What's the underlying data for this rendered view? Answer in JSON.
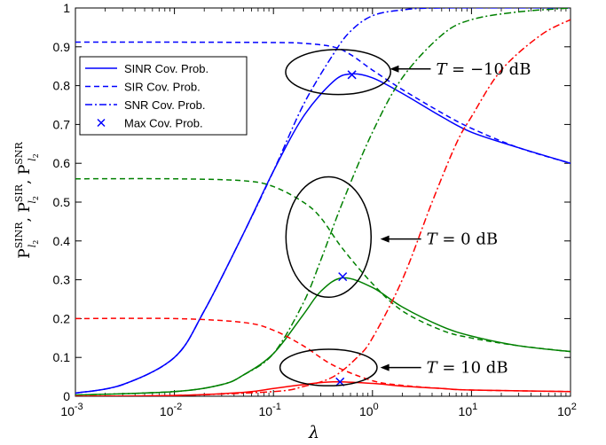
{
  "chart_data": {
    "type": "line",
    "x_scale": "log",
    "xlabel": "λ",
    "ylabel": "P_{l2}^{SINR}, P_{l2}^{SIR}, P_{l2}^{SNR}",
    "xlim": [
      0.001,
      100
    ],
    "ylim": [
      0,
      1
    ],
    "x_ticks": [
      {
        "value": 0.001,
        "base": "10",
        "exp": "-3"
      },
      {
        "value": 0.01,
        "base": "10",
        "exp": "-2"
      },
      {
        "value": 0.1,
        "base": "10",
        "exp": "-1"
      },
      {
        "value": 1,
        "base": "10",
        "exp": "0"
      },
      {
        "value": 10,
        "base": "10",
        "exp": "1"
      },
      {
        "value": 100,
        "base": "10",
        "exp": "2"
      }
    ],
    "y_ticks": [
      {
        "value": 0,
        "label": "0"
      },
      {
        "value": 0.1,
        "label": "0.1"
      },
      {
        "value": 0.2,
        "label": "0.2"
      },
      {
        "value": 0.3,
        "label": "0.3"
      },
      {
        "value": 0.4,
        "label": "0.4"
      },
      {
        "value": 0.5,
        "label": "0.5"
      },
      {
        "value": 0.6,
        "label": "0.6"
      },
      {
        "value": 0.7,
        "label": "0.7"
      },
      {
        "value": 0.8,
        "label": "0.8"
      },
      {
        "value": 0.9,
        "label": "0.9"
      },
      {
        "value": 1,
        "label": "1"
      }
    ],
    "grid": false,
    "legend": {
      "placement": "upper-left",
      "entries": [
        {
          "label": "SINR Cov. Prob.",
          "style": "solid"
        },
        {
          "label": "SIR Cov. Prob.",
          "style": "dashed"
        },
        {
          "label": "SNR Cov. Prob.",
          "style": "dashdot"
        },
        {
          "label": "Max Cov. Prob.",
          "style": "marker"
        }
      ]
    },
    "series": [
      {
        "group": "T = -10 dB",
        "kind": "SINR",
        "style": "solid",
        "color": "#0000ff",
        "x": [
          0.001,
          0.003,
          0.01,
          0.02,
          0.05,
          0.1,
          0.2,
          0.4,
          0.6,
          1,
          2,
          5,
          10,
          30,
          100
        ],
        "y": [
          0.008,
          0.03,
          0.1,
          0.22,
          0.42,
          0.58,
          0.72,
          0.81,
          0.83,
          0.82,
          0.78,
          0.72,
          0.68,
          0.64,
          0.6
        ]
      },
      {
        "group": "T = -10 dB",
        "kind": "SIR",
        "style": "dashed",
        "color": "#0000ff",
        "x": [
          0.001,
          0.01,
          0.1,
          0.2,
          0.4,
          0.6,
          1,
          2,
          5,
          10,
          30,
          100
        ],
        "y": [
          0.912,
          0.912,
          0.911,
          0.909,
          0.9,
          0.88,
          0.84,
          0.79,
          0.73,
          0.69,
          0.64,
          0.6
        ]
      },
      {
        "group": "T = -10 dB",
        "kind": "SNR",
        "style": "dashdot",
        "color": "#0000ff",
        "x": [
          0.001,
          0.003,
          0.01,
          0.02,
          0.05,
          0.1,
          0.2,
          0.4,
          0.6,
          1,
          2,
          5,
          100
        ],
        "y": [
          0.008,
          0.03,
          0.1,
          0.22,
          0.42,
          0.58,
          0.75,
          0.88,
          0.94,
          0.98,
          0.995,
          1,
          1
        ]
      },
      {
        "group": "T = 0 dB",
        "kind": "SINR",
        "style": "solid",
        "color": "#008000",
        "x": [
          0.001,
          0.01,
          0.03,
          0.05,
          0.1,
          0.2,
          0.3,
          0.5,
          1,
          2,
          5,
          10,
          30,
          100
        ],
        "y": [
          0.003,
          0.012,
          0.03,
          0.055,
          0.11,
          0.21,
          0.27,
          0.305,
          0.28,
          0.23,
          0.18,
          0.155,
          0.13,
          0.115
        ]
      },
      {
        "group": "T = 0 dB",
        "kind": "SIR",
        "style": "dashed",
        "color": "#008000",
        "x": [
          0.001,
          0.01,
          0.05,
          0.1,
          0.2,
          0.3,
          0.5,
          1,
          2,
          5,
          10,
          30,
          100
        ],
        "y": [
          0.56,
          0.56,
          0.555,
          0.54,
          0.5,
          0.46,
          0.38,
          0.29,
          0.22,
          0.17,
          0.15,
          0.13,
          0.115
        ]
      },
      {
        "group": "T = 0 dB",
        "kind": "SNR",
        "style": "dashdot",
        "color": "#008000",
        "x": [
          0.001,
          0.01,
          0.03,
          0.05,
          0.1,
          0.2,
          0.3,
          0.5,
          1,
          2,
          5,
          10,
          30,
          100
        ],
        "y": [
          0.003,
          0.012,
          0.03,
          0.055,
          0.11,
          0.24,
          0.35,
          0.5,
          0.68,
          0.82,
          0.93,
          0.97,
          0.99,
          1
        ]
      },
      {
        "group": "T = 10 dB",
        "kind": "SINR",
        "style": "solid",
        "color": "#ff0000",
        "x": [
          0.001,
          0.01,
          0.05,
          0.1,
          0.2,
          0.4,
          1,
          2,
          5,
          10,
          100
        ],
        "y": [
          0.0,
          0.002,
          0.01,
          0.02,
          0.03,
          0.037,
          0.033,
          0.026,
          0.02,
          0.016,
          0.012
        ]
      },
      {
        "group": "T = 10 dB",
        "kind": "SIR",
        "style": "dashed",
        "color": "#ff0000",
        "x": [
          0.001,
          0.01,
          0.05,
          0.1,
          0.2,
          0.4,
          1,
          2,
          5,
          10,
          100
        ],
        "y": [
          0.2,
          0.2,
          0.19,
          0.17,
          0.13,
          0.08,
          0.04,
          0.028,
          0.02,
          0.016,
          0.012
        ]
      },
      {
        "group": "T = 10 dB",
        "kind": "SNR",
        "style": "dashdot",
        "color": "#ff0000",
        "x": [
          0.001,
          0.01,
          0.1,
          0.2,
          0.4,
          0.7,
          1,
          2,
          4,
          7,
          10,
          20,
          50,
          100
        ],
        "y": [
          0.0,
          0.002,
          0.012,
          0.025,
          0.05,
          0.1,
          0.15,
          0.3,
          0.5,
          0.65,
          0.72,
          0.84,
          0.93,
          0.97
        ]
      }
    ],
    "max_points": [
      {
        "group": "T = -10 dB",
        "x": 0.62,
        "y": 0.828,
        "color": "#0000ff"
      },
      {
        "group": "T = 0 dB",
        "x": 0.5,
        "y": 0.308,
        "color": "#0000ff"
      },
      {
        "group": "T = 10 dB",
        "x": 0.47,
        "y": 0.037,
        "color": "#0000ff"
      }
    ],
    "annotations": [
      {
        "lhs": "T",
        "rhs": "−10 dB",
        "ellipse_center": [
          0.45,
          0.835
        ],
        "ellipse_rx_dec": 0.53,
        "ellipse_ry": 0.058,
        "arrow_tip": [
          1.5,
          0.843
        ]
      },
      {
        "lhs": "T",
        "rhs": "0 dB",
        "ellipse_center": [
          0.36,
          0.41
        ],
        "ellipse_rx_dec": 0.43,
        "ellipse_ry": 0.155,
        "arrow_tip": [
          1.2,
          0.405
        ]
      },
      {
        "lhs": "T",
        "rhs": "10 dB",
        "ellipse_center": [
          0.36,
          0.074
        ],
        "ellipse_rx_dec": 0.49,
        "ellipse_ry": 0.047,
        "arrow_tip": [
          1.2,
          0.074
        ]
      }
    ]
  }
}
